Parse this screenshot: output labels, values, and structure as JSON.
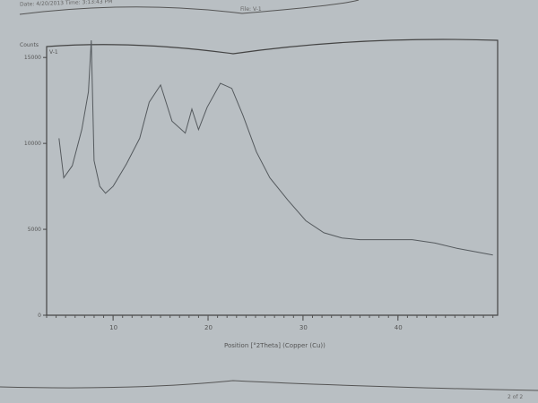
{
  "header": {
    "date_time": "Date: 4/20/2013 Time: 3:13:43 PM",
    "file": "File: V-1"
  },
  "footer": {
    "page": "2 of 2"
  },
  "chart_data": {
    "type": "line",
    "title": "",
    "sample_label": "V-1",
    "ylabel": "Counts",
    "xlabel": "Position [°2Theta] (Copper (Cu))",
    "xlim": [
      3,
      50.5
    ],
    "ylim": [
      0,
      16000
    ],
    "xticks": [
      10,
      20,
      30,
      40
    ],
    "yticks": [
      0,
      5000,
      10000,
      15000
    ],
    "grid": false,
    "series": [
      {
        "color": "#555a5e",
        "x": [
          4.3,
          4.8,
          5.7,
          6.7,
          7.4,
          7.7,
          8.0,
          8.6,
          9.2,
          10,
          11.4,
          12.8,
          13.8,
          15,
          16.2,
          17.6,
          18.3,
          19,
          19.9,
          21.3,
          22.5,
          23.7,
          25.1,
          26.5,
          28.4,
          30.3,
          32.2,
          34.1,
          36,
          38.8,
          41.5,
          43.9,
          46.2,
          50
        ],
        "y": [
          10300,
          8000,
          8700,
          10800,
          13000,
          16000,
          9000,
          7500,
          7100,
          7500,
          8800,
          10300,
          12400,
          13400,
          11300,
          10600,
          12000,
          10800,
          12100,
          13500,
          13200,
          11600,
          9500,
          8000,
          6700,
          5500,
          4800,
          4500,
          4400,
          4400,
          4400,
          4200,
          3900,
          3500
        ]
      }
    ]
  }
}
